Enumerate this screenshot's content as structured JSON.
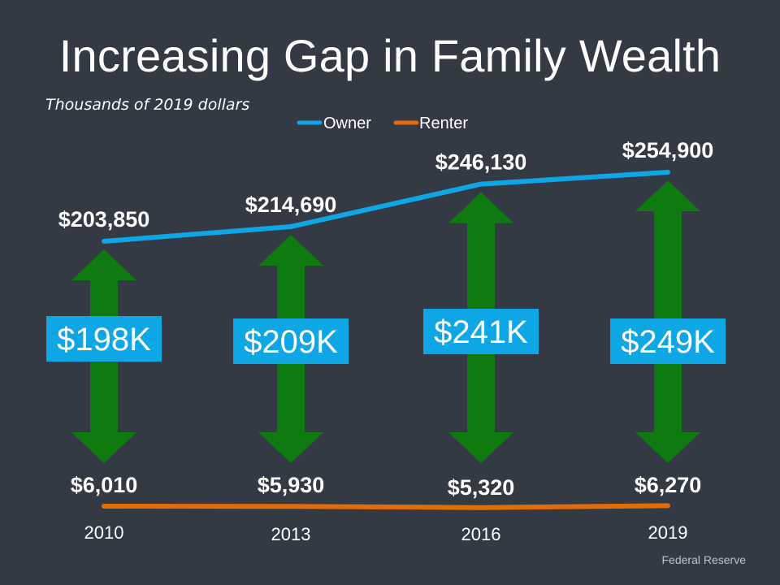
{
  "title": "Increasing Gap in Family Wealth",
  "subtitle": "Thousands of 2019 dollars",
  "source": "Federal Reserve",
  "colors": {
    "background": "#333a43",
    "owner": "#0fa6e6",
    "renter": "#e36c0a",
    "arrow": "#0f7a10",
    "gap_box": "#0fa6e6"
  },
  "chart_data": {
    "type": "line",
    "title": "Increasing Gap in Family Wealth",
    "subtitle": "Thousands of 2019 dollars",
    "categories": [
      "2010",
      "2013",
      "2016",
      "2019"
    ],
    "series": [
      {
        "name": "Owner",
        "values": [
          203850,
          214690,
          246130,
          254900
        ],
        "labels": [
          "$203,850",
          "$214,690",
          "$246,130",
          "$254,900"
        ]
      },
      {
        "name": "Renter",
        "values": [
          6010,
          5930,
          5320,
          6270
        ],
        "labels": [
          "$6,010",
          "$5,930",
          "$5,320",
          "$6,270"
        ]
      }
    ],
    "gap_labels": [
      "$198K",
      "$209K",
      "$241K",
      "$249K"
    ],
    "legend": [
      "Owner",
      "Renter"
    ],
    "legend_position": "top-center",
    "ylim": [
      0,
      260000
    ],
    "grid": false
  }
}
